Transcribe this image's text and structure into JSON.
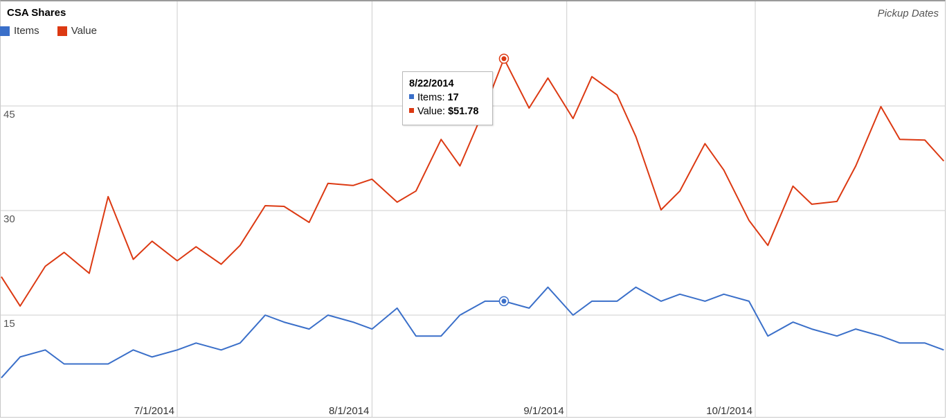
{
  "title": "CSA Shares",
  "subtitle": "Pickup Dates",
  "colors": {
    "items": "#3a6fc9",
    "value": "#dc3912",
    "grid": "#cccccc"
  },
  "legend": [
    {
      "name": "Items",
      "color": "#3a6fc9"
    },
    {
      "name": "Value",
      "color": "#dc3912"
    }
  ],
  "tooltip": {
    "date": "8/22/2014",
    "items_label": "Items:",
    "items_value": "17",
    "value_label": "Value:",
    "value_value": "$51.78"
  },
  "chart_data": {
    "type": "line",
    "title": "CSA Shares",
    "subtitle": "Pickup Dates",
    "xlabel": "",
    "ylabel": "",
    "ylim": [
      0,
      60
    ],
    "yticks": [
      15,
      30,
      45
    ],
    "xticks": [
      "7/1/2014",
      "8/1/2014",
      "9/1/2014",
      "10/1/2014"
    ],
    "grid": true,
    "legend_position": "top-left",
    "x": [
      "6/3/2014",
      "6/6/2014",
      "6/10/2014",
      "6/13/2014",
      "6/17/2014",
      "6/20/2014",
      "6/24/2014",
      "6/27/2014",
      "7/1/2014",
      "7/4/2014",
      "7/8/2014",
      "7/11/2014",
      "7/15/2014",
      "7/18/2014",
      "7/22/2014",
      "7/25/2014",
      "7/29/2014",
      "8/1/2014",
      "8/5/2014",
      "8/8/2014",
      "8/12/2014",
      "8/15/2014",
      "8/19/2014",
      "8/22/2014",
      "8/26/2014",
      "8/29/2014",
      "9/2/2014",
      "9/5/2014",
      "9/9/2014",
      "9/12/2014",
      "9/16/2014",
      "9/19/2014",
      "9/23/2014",
      "9/26/2014",
      "9/30/2014",
      "10/3/2014",
      "10/7/2014",
      "10/10/2014",
      "10/14/2014",
      "10/17/2014",
      "10/21/2014",
      "10/24/2014",
      "10/28/2014",
      "10/31/2014"
    ],
    "series": [
      {
        "name": "Items",
        "values": [
          6,
          9,
          10,
          8,
          8,
          8,
          10,
          9,
          10,
          11,
          10,
          11,
          15,
          14,
          13,
          15,
          14,
          13,
          16,
          12,
          12,
          15,
          17,
          17,
          16,
          19,
          15,
          17,
          17,
          19,
          17,
          18,
          17,
          18,
          17,
          12,
          14,
          13,
          12,
          13,
          12,
          11,
          11,
          10
        ]
      },
      {
        "name": "Value",
        "values": [
          20.5,
          16.3,
          22.0,
          24.0,
          21.0,
          32.0,
          23.0,
          25.6,
          22.8,
          24.8,
          22.3,
          25.0,
          30.7,
          30.6,
          28.3,
          33.9,
          33.6,
          34.5,
          31.2,
          32.8,
          40.2,
          36.4,
          44.8,
          51.78,
          44.7,
          49.0,
          43.2,
          49.2,
          46.6,
          40.6,
          30.1,
          32.8,
          39.6,
          35.8,
          28.6,
          25.0,
          33.5,
          30.9,
          31.3,
          36.4,
          44.9,
          40.2,
          40.1,
          37.1
        ]
      }
    ]
  }
}
